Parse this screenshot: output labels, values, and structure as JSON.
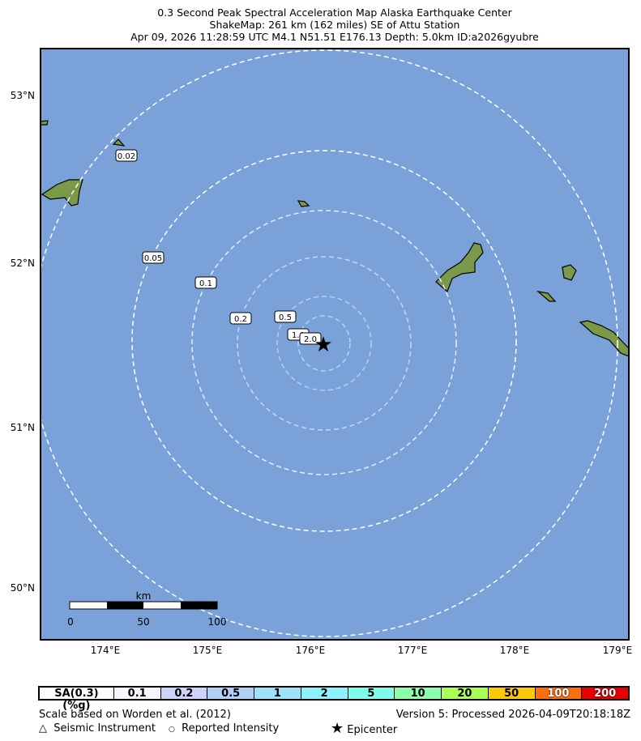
{
  "title": {
    "line1": "0.3 Second Peak Spectral Acceleration Map Alaska Earthquake Center",
    "line2": "ShakeMap: 261 km (162 miles) SE of Attu Station",
    "line3": "Apr 09, 2026 11:28:59 UTC M4.1 N51.51 E176.13 Depth: 5.0km ID:a2026gyubre"
  },
  "map": {
    "ocean_color": "#7aa1d8",
    "land_color": "#7a9a4a",
    "lon_labels": [
      "174°E",
      "175°E",
      "176°E",
      "177°E",
      "178°E",
      "179°E"
    ],
    "lat_labels": [
      "53°N",
      "52°N",
      "51°N",
      "50°N"
    ],
    "contour_labels": [
      "0.02",
      "0.05",
      "0.1",
      "0.2",
      "0.5",
      "1.0",
      "2.0"
    ],
    "scalebar": {
      "unit": "km",
      "ticks": [
        "0",
        "50",
        "100"
      ]
    }
  },
  "legend": {
    "header": "SA(0.3) (%g)",
    "bins": [
      {
        "label": "0.1",
        "color": "#f5f6ff"
      },
      {
        "label": "0.2",
        "color": "#cdd3fb"
      },
      {
        "label": "0.5",
        "color": "#b2d1f8"
      },
      {
        "label": "1",
        "color": "#9ee1fb"
      },
      {
        "label": "2",
        "color": "#8cf1fc"
      },
      {
        "label": "5",
        "color": "#7efee9"
      },
      {
        "label": "10",
        "color": "#8dfeab"
      },
      {
        "label": "20",
        "color": "#a9fd55"
      },
      {
        "label": "50",
        "color": "#fcc80a"
      },
      {
        "label": "100",
        "color": "#fd6f0c"
      },
      {
        "label": "200",
        "color": "#e60000"
      }
    ]
  },
  "footer": {
    "scale_note": "Scale based on Worden et al. (2012)",
    "version": "Version 5: Processed 2026-04-09T20:18:18Z",
    "seismic": "Seismic Instrument",
    "reported": "Reported Intensity",
    "epicenter": "Epicenter"
  }
}
